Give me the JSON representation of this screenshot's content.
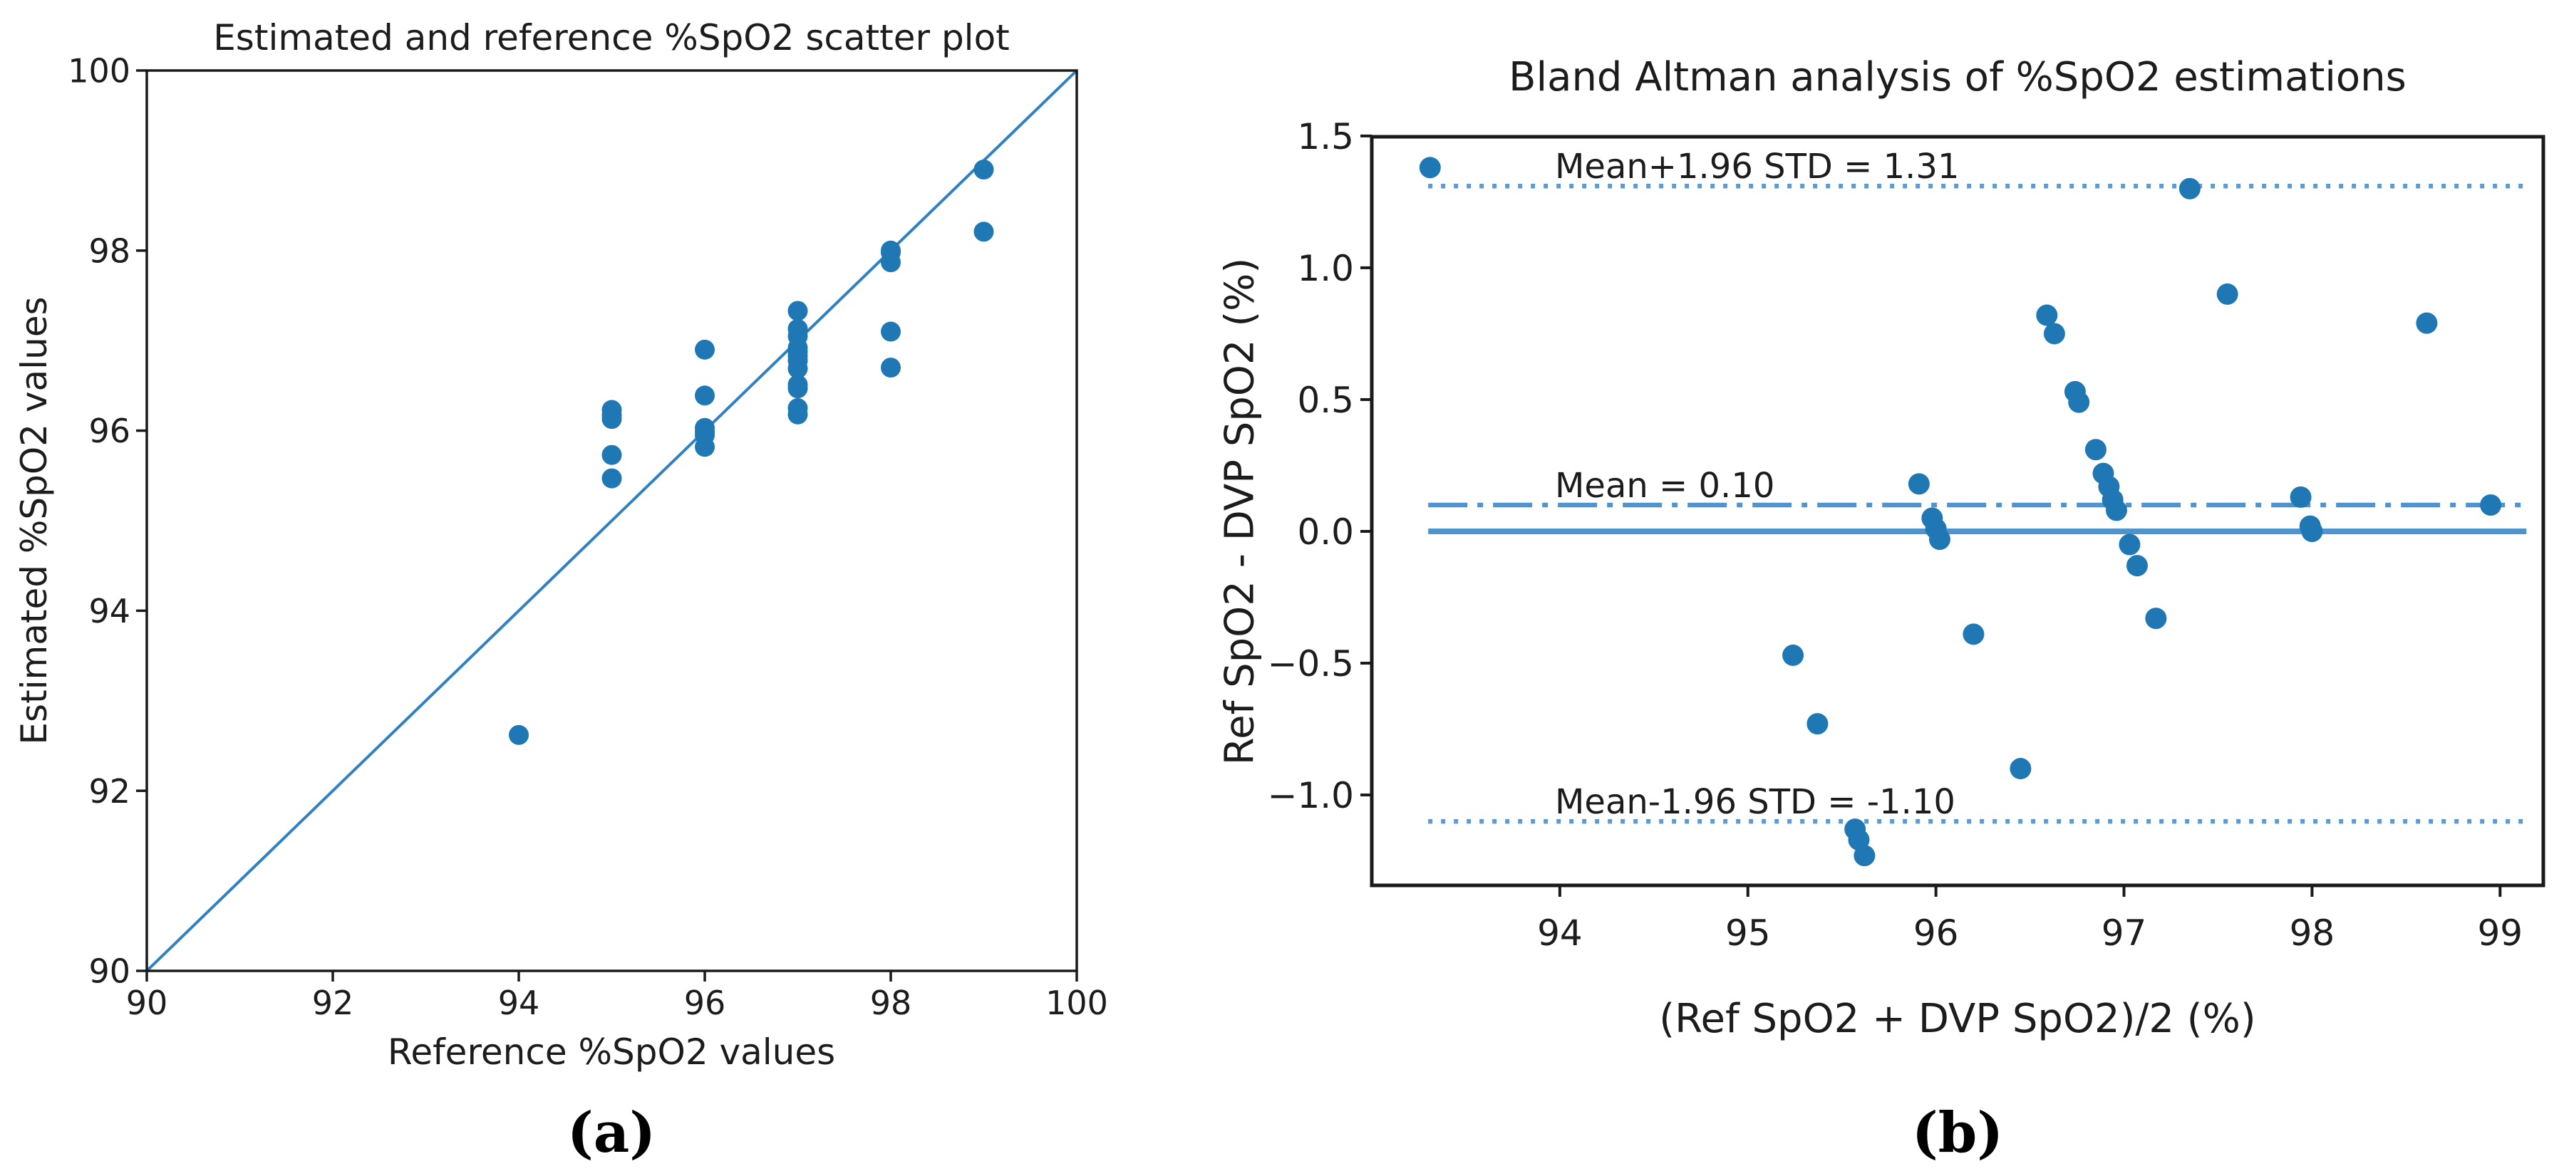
{
  "captions": {
    "a": "(a)",
    "b": "(b)"
  },
  "colors": {
    "point": "#1f77b4",
    "identity_line": "#2f81c2",
    "reference_line": "#4f94cc",
    "reference_line_dotted": "#5b9bd0",
    "frame": "#1a1a1a",
    "text": "#1c1c1c"
  },
  "chart_data": [
    {
      "id": "spo2-scatter",
      "type": "scatter",
      "title": "Estimated and reference %SpO2 scatter plot",
      "xlabel": "Reference %SpO2 values",
      "ylabel": "Estimated %SpO2 values",
      "xlim": [
        90,
        100
      ],
      "ylim": [
        90,
        100
      ],
      "xticks": [
        90,
        92,
        94,
        96,
        98,
        100
      ],
      "yticks": [
        90,
        92,
        94,
        96,
        98,
        100
      ],
      "xtick_labels": [
        "90",
        "92",
        "94",
        "96",
        "98",
        "100"
      ],
      "ytick_labels": [
        "90",
        "92",
        "94",
        "96",
        "98",
        "100"
      ],
      "grid": false,
      "identity_line": {
        "from": [
          90,
          90
        ],
        "to": [
          100,
          100
        ]
      },
      "points": [
        [
          94,
          92.62
        ],
        [
          95,
          95.47
        ],
        [
          95,
          95.73
        ],
        [
          95,
          96.13
        ],
        [
          95,
          96.17
        ],
        [
          95,
          96.23
        ],
        [
          96,
          95.82
        ],
        [
          96,
          95.95
        ],
        [
          96,
          95.99
        ],
        [
          96,
          96.03
        ],
        [
          96,
          96.39
        ],
        [
          96,
          96.9
        ],
        [
          97,
          96.18
        ],
        [
          97,
          96.25
        ],
        [
          97,
          96.47
        ],
        [
          97,
          96.51
        ],
        [
          97,
          96.69
        ],
        [
          97,
          96.78
        ],
        [
          97,
          96.83
        ],
        [
          97,
          96.88
        ],
        [
          97,
          96.92
        ],
        [
          97,
          97.05
        ],
        [
          97,
          97.13
        ],
        [
          97,
          97.33
        ],
        [
          98,
          96.7
        ],
        [
          98,
          97.1
        ],
        [
          98,
          97.87
        ],
        [
          98,
          97.98
        ],
        [
          98,
          98.0
        ],
        [
          99,
          98.21
        ],
        [
          99,
          98.9
        ]
      ]
    },
    {
      "id": "bland-altman",
      "type": "scatter",
      "title": "Bland Altman analysis of %SpO2 estimations",
      "xlabel": "(Ref SpO2 + DVP SpO2)/2 (%)",
      "ylabel": "Ref SpO2 - DVP SpO2 (%)",
      "xlim": [
        93.0,
        99.23
      ],
      "ylim": [
        -1.343,
        1.497
      ],
      "xticks": [
        94,
        95,
        96,
        97,
        98,
        99
      ],
      "yticks": [
        1.5,
        1.0,
        0.5,
        0.0,
        -0.5,
        -1.0
      ],
      "xtick_labels": [
        "94",
        "95",
        "96",
        "97",
        "98",
        "99"
      ],
      "ytick_labels": [
        "1.5",
        "1.0",
        "0.5",
        "0.0",
        "−0.5",
        "−1.0"
      ],
      "grid": false,
      "mean_diff": 0.1,
      "upper_loa": 1.31,
      "lower_loa": -1.1,
      "hlines": [
        {
          "id": "upper-loa",
          "y": 1.31,
          "style": "dotted",
          "label": "Mean+1.96 STD = 1.31"
        },
        {
          "id": "mean",
          "y": 0.1,
          "style": "dashdot",
          "label": "Mean = 0.10"
        },
        {
          "id": "zero",
          "y": 0.0,
          "style": "solid",
          "label": ""
        },
        {
          "id": "lower-loa",
          "y": -1.1,
          "style": "dotted",
          "label": "Mean-1.96 STD = -1.10"
        }
      ],
      "hline_span": [
        93.3,
        99.14
      ],
      "points": [
        [
          93.31,
          1.38
        ],
        [
          95.24,
          -0.47
        ],
        [
          95.37,
          -0.73
        ],
        [
          95.57,
          -1.13
        ],
        [
          95.59,
          -1.17
        ],
        [
          95.62,
          -1.23
        ],
        [
          95.91,
          0.18
        ],
        [
          95.98,
          0.05
        ],
        [
          96.0,
          0.01
        ],
        [
          96.02,
          -0.03
        ],
        [
          96.2,
          -0.39
        ],
        [
          96.45,
          -0.9
        ],
        [
          96.59,
          0.82
        ],
        [
          96.63,
          0.75
        ],
        [
          96.74,
          0.53
        ],
        [
          96.76,
          0.49
        ],
        [
          96.85,
          0.31
        ],
        [
          96.89,
          0.22
        ],
        [
          96.92,
          0.17
        ],
        [
          96.94,
          0.12
        ],
        [
          96.96,
          0.08
        ],
        [
          97.03,
          -0.05
        ],
        [
          97.07,
          -0.13
        ],
        [
          97.17,
          -0.33
        ],
        [
          97.35,
          1.3
        ],
        [
          97.55,
          0.9
        ],
        [
          97.94,
          0.13
        ],
        [
          97.99,
          0.02
        ],
        [
          98.0,
          0.0
        ],
        [
          98.61,
          0.79
        ],
        [
          98.95,
          0.1
        ]
      ]
    }
  ]
}
